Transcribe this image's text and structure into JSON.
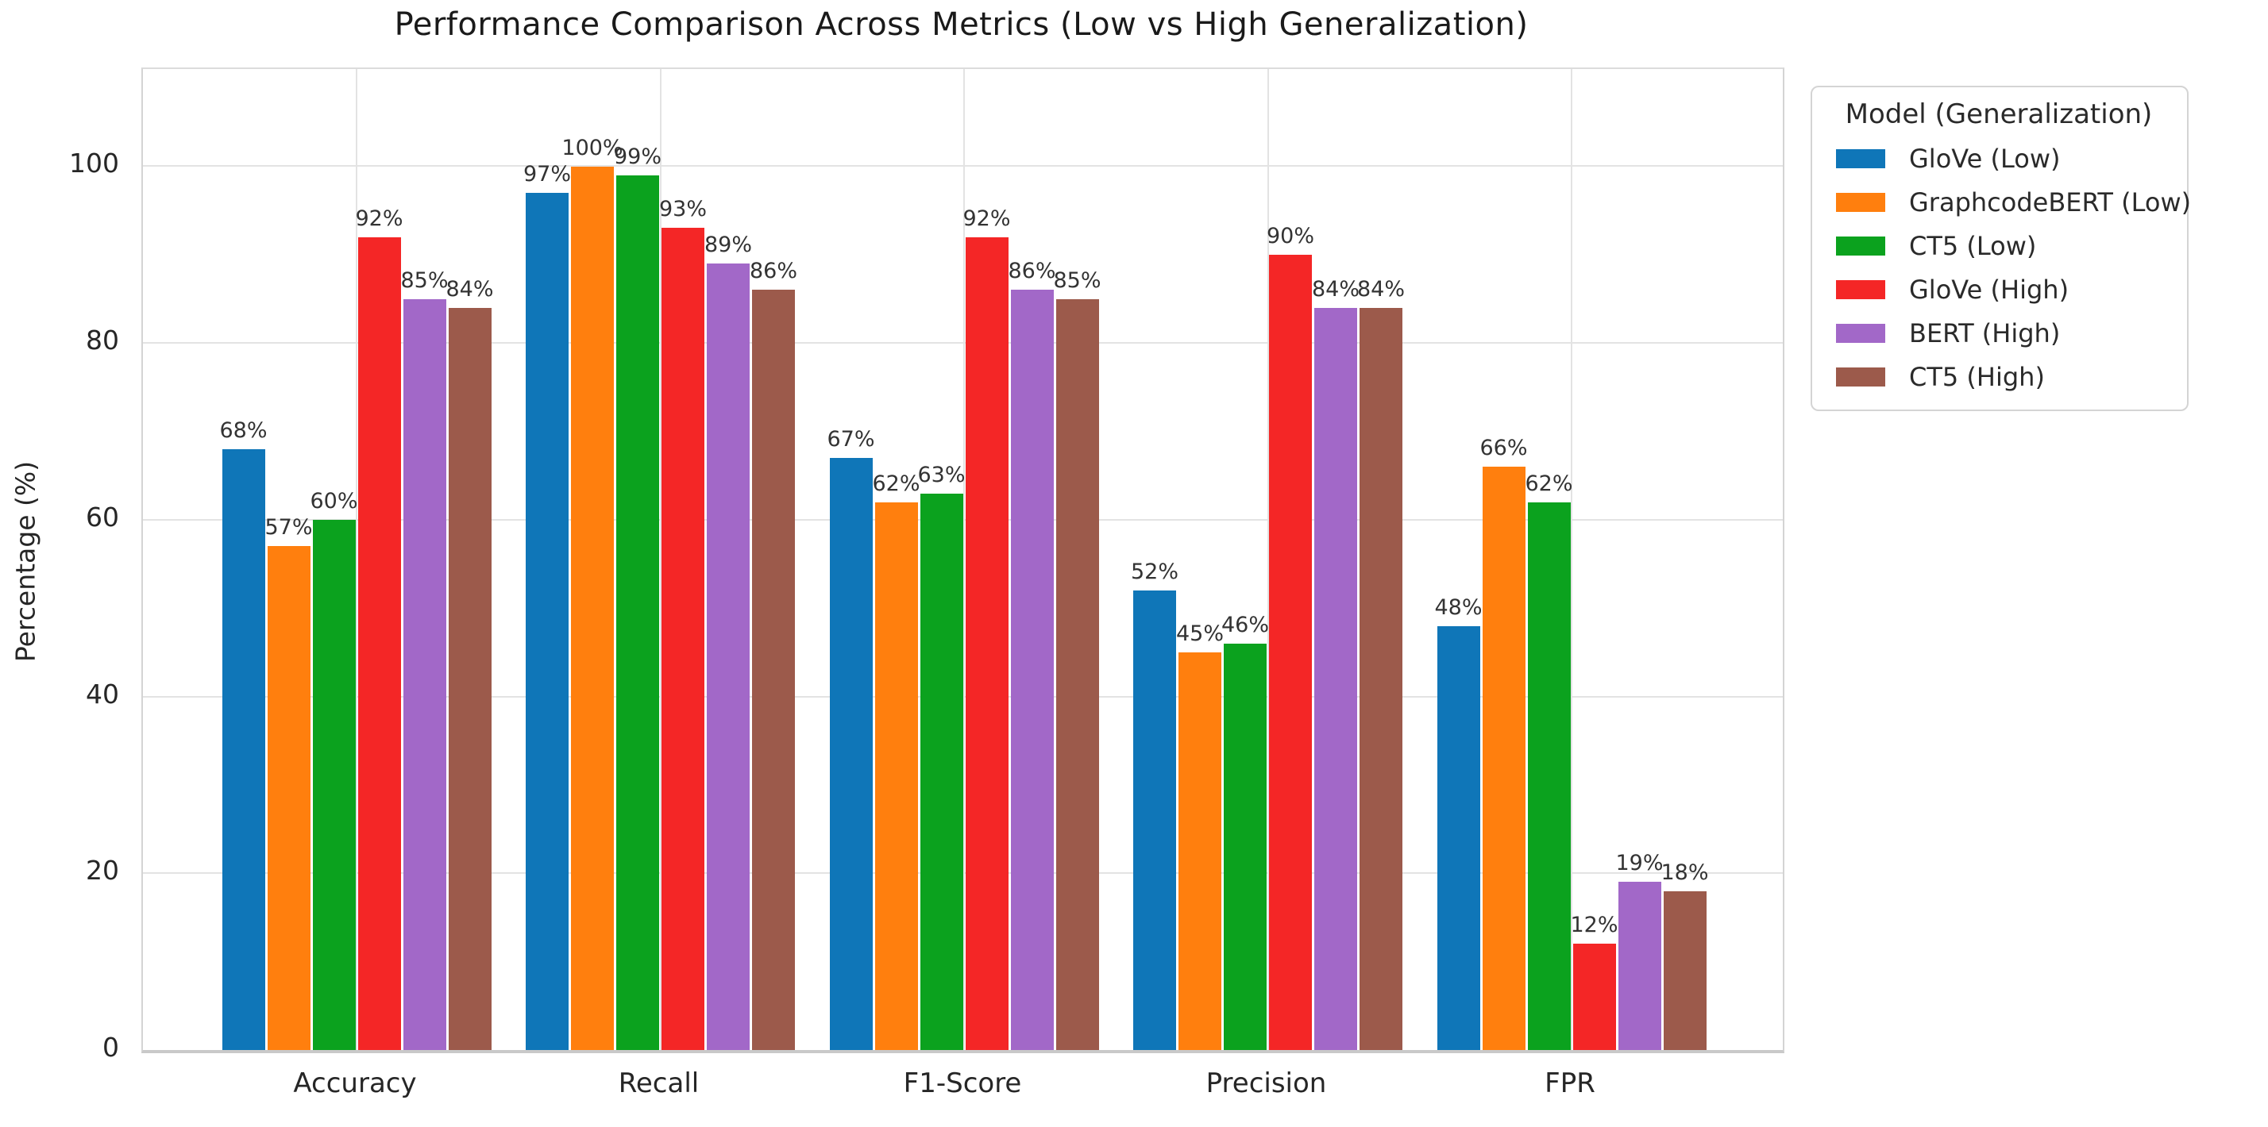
{
  "title": "Performance Comparison Across Metrics (Low vs High Generalization)",
  "chart_data": {
    "type": "bar",
    "title": "Performance Comparison Across Metrics (Low vs High Generalization)",
    "categories": [
      "Accuracy",
      "Recall",
      "F1-Score",
      "Precision",
      "FPR"
    ],
    "series": [
      {
        "name": "GloVe (Low)",
        "color": "#0f76b8",
        "values": [
          68,
          97,
          67,
          52,
          48
        ]
      },
      {
        "name": "GraphcodeBERT (Low)",
        "color": "#ff7f0e",
        "values": [
          57,
          100,
          62,
          45,
          66
        ]
      },
      {
        "name": "CT5 (Low)",
        "color": "#0ba21e",
        "values": [
          60,
          99,
          63,
          46,
          62
        ]
      },
      {
        "name": "GloVe (High)",
        "color": "#f42626",
        "values": [
          92,
          93,
          92,
          90,
          12
        ]
      },
      {
        "name": "BERT (High)",
        "color": "#a268c8",
        "values": [
          85,
          89,
          86,
          84,
          19
        ]
      },
      {
        "name": "CT5 (High)",
        "color": "#9c5a4b",
        "values": [
          84,
          86,
          85,
          84,
          18
        ]
      }
    ],
    "value_label_suffix": "%",
    "xlabel": "",
    "ylabel": "Percentage (%)",
    "y_ticks": [
      0,
      20,
      40,
      60,
      80,
      100
    ],
    "ylim": [
      0,
      111
    ],
    "grid": true,
    "legend_title": "Model (Generalization)",
    "legend_position": "upper-right-outside",
    "colors": {
      "background": "#ffffff",
      "gridline": "#e3e3e3",
      "spine": "#c9c9c9",
      "title_text": "#1a1a1a",
      "tick_text": "#262626",
      "value_label_text": "#333333"
    }
  }
}
